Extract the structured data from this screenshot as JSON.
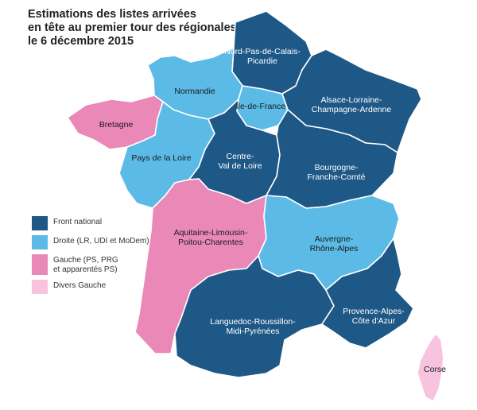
{
  "title": {
    "line1": "Estimations des listes arrivées",
    "line2": "en tête au premier tour des régionales,",
    "line3": "le 6 décembre 2015"
  },
  "colors": {
    "front_national": "#1e5887",
    "droite": "#5bbbe6",
    "gauche": "#ea88b8",
    "divers_gauche": "#f7c3de",
    "border": "#ffffff"
  },
  "legend": [
    {
      "label": "Front national",
      "color": "#1e5887"
    },
    {
      "label": "Droite (LR, UDI et MoDem)",
      "color": "#5bbbe6"
    },
    {
      "label": "Gauche (PS, PRG\net apparentés PS)",
      "color": "#ea88b8"
    },
    {
      "label": "Divers Gauche",
      "color": "#f7c3de"
    }
  ],
  "regions": [
    {
      "id": "npdc",
      "label": "Nord-Pas-de-Calais-\nPicardie",
      "category": "front_national"
    },
    {
      "id": "normandie",
      "label": "Normandie",
      "category": "droite"
    },
    {
      "id": "idf",
      "label": "Île-de-France",
      "category": "droite"
    },
    {
      "id": "alca",
      "label": "Alsace-Lorraine-\nChampagne-Ardenne",
      "category": "front_national"
    },
    {
      "id": "bretagne",
      "label": "Bretagne",
      "category": "gauche"
    },
    {
      "id": "pdl",
      "label": "Pays de la Loire",
      "category": "droite"
    },
    {
      "id": "cvl",
      "label": "Centre-\nVal de Loire",
      "category": "front_national"
    },
    {
      "id": "bfc",
      "label": "Bourgogne-\nFranche-Comté",
      "category": "front_national"
    },
    {
      "id": "alpc",
      "label": "Aquitaine-Limousin-\nPoitou-Charentes",
      "category": "gauche"
    },
    {
      "id": "ara",
      "label": "Auvergne-\nRhône-Alpes",
      "category": "droite"
    },
    {
      "id": "lrmp",
      "label": "Languedoc-Roussillon-\nMidi-Pyrénées",
      "category": "front_national"
    },
    {
      "id": "paca",
      "label": "Provence-Alpes-\nCôte d'Azur",
      "category": "front_national"
    },
    {
      "id": "corse",
      "label": "Corse",
      "category": "divers_gauche"
    }
  ]
}
